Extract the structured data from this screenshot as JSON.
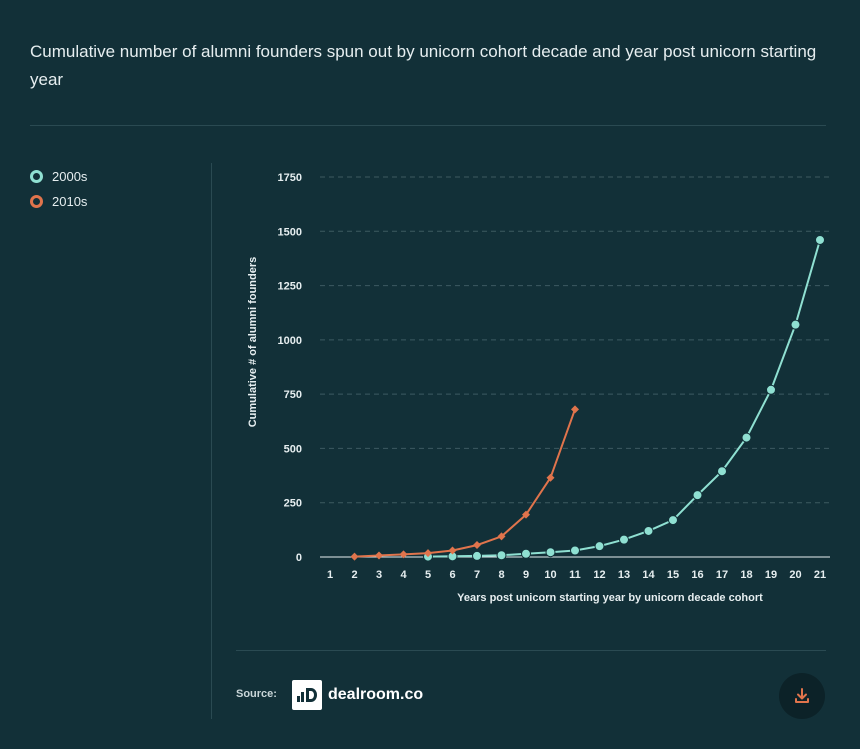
{
  "title": "Cumulative number of alumni founders spun out by unicorn cohort decade and year post unicorn starting year",
  "source": {
    "label": "Source:",
    "logo_text": "dealroom.co",
    "logo_icon": "dealroom-logo-icon"
  },
  "download": {
    "icon": "download-icon"
  },
  "colors": {
    "background": "#123038",
    "grid": "#3d5a61",
    "series_2000s": "#8fe0d2",
    "series_2010s": "#e0744c"
  },
  "chart_data": {
    "type": "line",
    "xlabel": "Years post unicorn starting year by unicorn decade cohort",
    "ylabel": "Cumulative # of alumni founders",
    "x": [
      1,
      2,
      3,
      4,
      5,
      6,
      7,
      8,
      9,
      10,
      11,
      12,
      13,
      14,
      15,
      16,
      17,
      18,
      19,
      20,
      21
    ],
    "xlim": [
      1,
      21
    ],
    "ylim": [
      0,
      1750
    ],
    "yticks": [
      0,
      250,
      500,
      750,
      1000,
      1250,
      1500,
      1750
    ],
    "grid": true,
    "legend_position": "top-left",
    "series": [
      {
        "name": "2000s",
        "color": "#8fe0d2",
        "marker": "circle",
        "x": [
          5,
          6,
          7,
          8,
          9,
          10,
          11,
          12,
          13,
          14,
          15,
          16,
          17,
          18,
          19,
          20,
          21
        ],
        "values": [
          2,
          3,
          5,
          8,
          15,
          22,
          30,
          50,
          80,
          120,
          170,
          285,
          395,
          550,
          770,
          1070,
          1460
        ]
      },
      {
        "name": "2010s",
        "color": "#e0744c",
        "marker": "diamond",
        "x": [
          2,
          3,
          4,
          5,
          6,
          7,
          8,
          9,
          10,
          11
        ],
        "values": [
          2,
          7,
          12,
          18,
          30,
          55,
          95,
          195,
          365,
          680
        ]
      }
    ]
  }
}
